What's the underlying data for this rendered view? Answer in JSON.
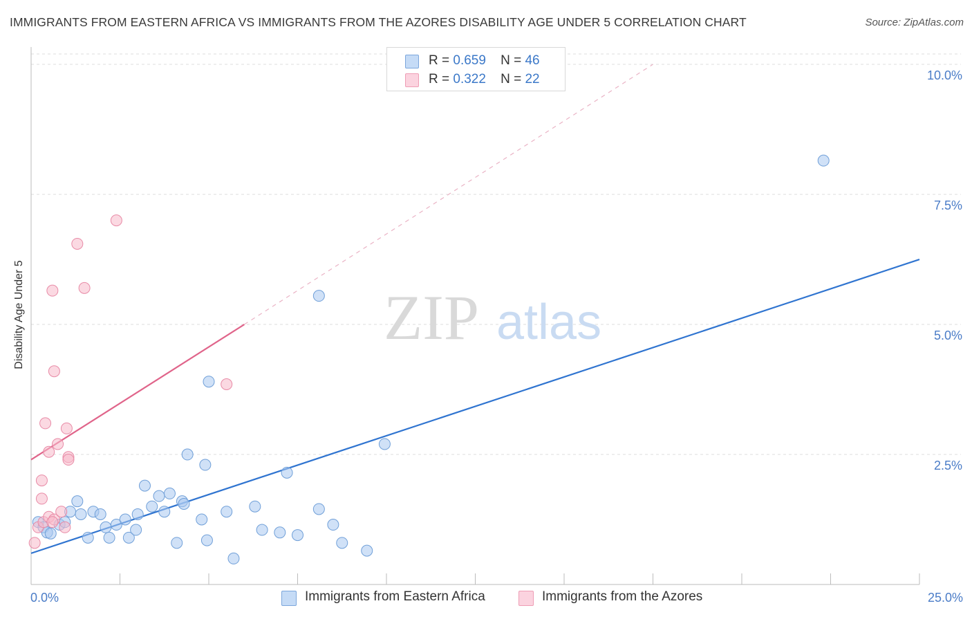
{
  "title": "IMMIGRANTS FROM EASTERN AFRICA VS IMMIGRANTS FROM THE AZORES DISABILITY AGE UNDER 5 CORRELATION CHART",
  "source": "Source: ZipAtlas.com",
  "watermark": {
    "zip": "ZIP",
    "atlas": "atlas"
  },
  "legend": {
    "r_label": "R =",
    "n_label": "N =",
    "rows": [
      {
        "r": "0.659",
        "n": "46",
        "color": "#a9c8f0"
      },
      {
        "r": "0.322",
        "n": "22",
        "color": "#f7b9cb"
      }
    ]
  },
  "bottom_legend": [
    {
      "label": "Immigrants from Eastern Africa",
      "color": "#a9c8f0"
    },
    {
      "label": "Immigrants from the Azores",
      "color": "#f7b9cb"
    }
  ],
  "chart_data": {
    "type": "scatter",
    "xlabel": "",
    "ylabel": "Disability Age Under 5",
    "xlim": [
      0,
      25
    ],
    "ylim": [
      0,
      10.2
    ],
    "x_tick_labels": [
      {
        "value": 0,
        "label": "0.0%"
      },
      {
        "value": 25,
        "label": "25.0%"
      }
    ],
    "y_tick_labels": [
      {
        "value": 2.5,
        "label": "2.5%"
      },
      {
        "value": 5.0,
        "label": "5.0%"
      },
      {
        "value": 7.5,
        "label": "7.5%"
      },
      {
        "value": 10.0,
        "label": "10.0%"
      }
    ],
    "x_minor_ticks": [
      0,
      2.5,
      5,
      7.5,
      10,
      12.5,
      15,
      17.5,
      20,
      22.5,
      25
    ],
    "series": [
      {
        "name": "Immigrants from Eastern Africa",
        "color": "#a9c8f0",
        "edge": "#6f9fd8",
        "trend_color": "#2f74d0",
        "trend": {
          "x": [
            0,
            25
          ],
          "y": [
            0.6,
            6.25
          ]
        },
        "points": [
          [
            0.2,
            1.2
          ],
          [
            0.35,
            1.1
          ],
          [
            0.45,
            1.0
          ],
          [
            0.55,
            0.98
          ],
          [
            0.8,
            1.15
          ],
          [
            0.95,
            1.2
          ],
          [
            1.1,
            1.4
          ],
          [
            1.3,
            1.6
          ],
          [
            1.4,
            1.35
          ],
          [
            1.6,
            0.9
          ],
          [
            1.75,
            1.4
          ],
          [
            1.95,
            1.35
          ],
          [
            2.1,
            1.1
          ],
          [
            2.2,
            0.9
          ],
          [
            2.4,
            1.15
          ],
          [
            2.65,
            1.25
          ],
          [
            2.75,
            0.9
          ],
          [
            2.95,
            1.05
          ],
          [
            3.0,
            1.35
          ],
          [
            3.2,
            1.9
          ],
          [
            3.4,
            1.5
          ],
          [
            3.6,
            1.7
          ],
          [
            3.75,
            1.4
          ],
          [
            3.9,
            1.75
          ],
          [
            4.1,
            0.8
          ],
          [
            4.25,
            1.6
          ],
          [
            4.3,
            1.55
          ],
          [
            4.4,
            2.5
          ],
          [
            4.8,
            1.25
          ],
          [
            4.9,
            2.3
          ],
          [
            4.95,
            0.85
          ],
          [
            5.0,
            3.9
          ],
          [
            5.5,
            1.4
          ],
          [
            5.7,
            0.5
          ],
          [
            6.3,
            1.5
          ],
          [
            6.5,
            1.05
          ],
          [
            7.0,
            1.0
          ],
          [
            7.2,
            2.15
          ],
          [
            7.5,
            0.95
          ],
          [
            8.1,
            5.55
          ],
          [
            8.1,
            1.45
          ],
          [
            8.5,
            1.15
          ],
          [
            8.75,
            0.8
          ],
          [
            9.45,
            0.65
          ],
          [
            9.95,
            2.7
          ],
          [
            22.3,
            8.15
          ]
        ]
      },
      {
        "name": "Immigrants from the Azores",
        "color": "#f7b9cb",
        "edge": "#e88aa6",
        "trend_color": "#e0648a",
        "trend": {
          "x": [
            0,
            6.0
          ],
          "y": [
            2.4,
            5.0
          ]
        },
        "trend_dashed": {
          "x": [
            6.0,
            17.5
          ],
          "y": [
            5.0,
            10.0
          ]
        },
        "points": [
          [
            0.1,
            0.8
          ],
          [
            0.2,
            1.1
          ],
          [
            0.3,
            1.65
          ],
          [
            0.3,
            2.0
          ],
          [
            0.35,
            1.2
          ],
          [
            0.4,
            3.1
          ],
          [
            0.5,
            1.3
          ],
          [
            0.5,
            2.55
          ],
          [
            0.6,
            5.65
          ],
          [
            0.65,
            1.25
          ],
          [
            0.6,
            1.2
          ],
          [
            0.65,
            4.1
          ],
          [
            0.75,
            2.7
          ],
          [
            0.85,
            1.4
          ],
          [
            0.95,
            1.1
          ],
          [
            1.0,
            3.0
          ],
          [
            1.05,
            2.45
          ],
          [
            1.05,
            2.4
          ],
          [
            1.3,
            6.55
          ],
          [
            1.5,
            5.7
          ],
          [
            2.4,
            7.0
          ],
          [
            5.5,
            3.85
          ]
        ]
      }
    ]
  }
}
